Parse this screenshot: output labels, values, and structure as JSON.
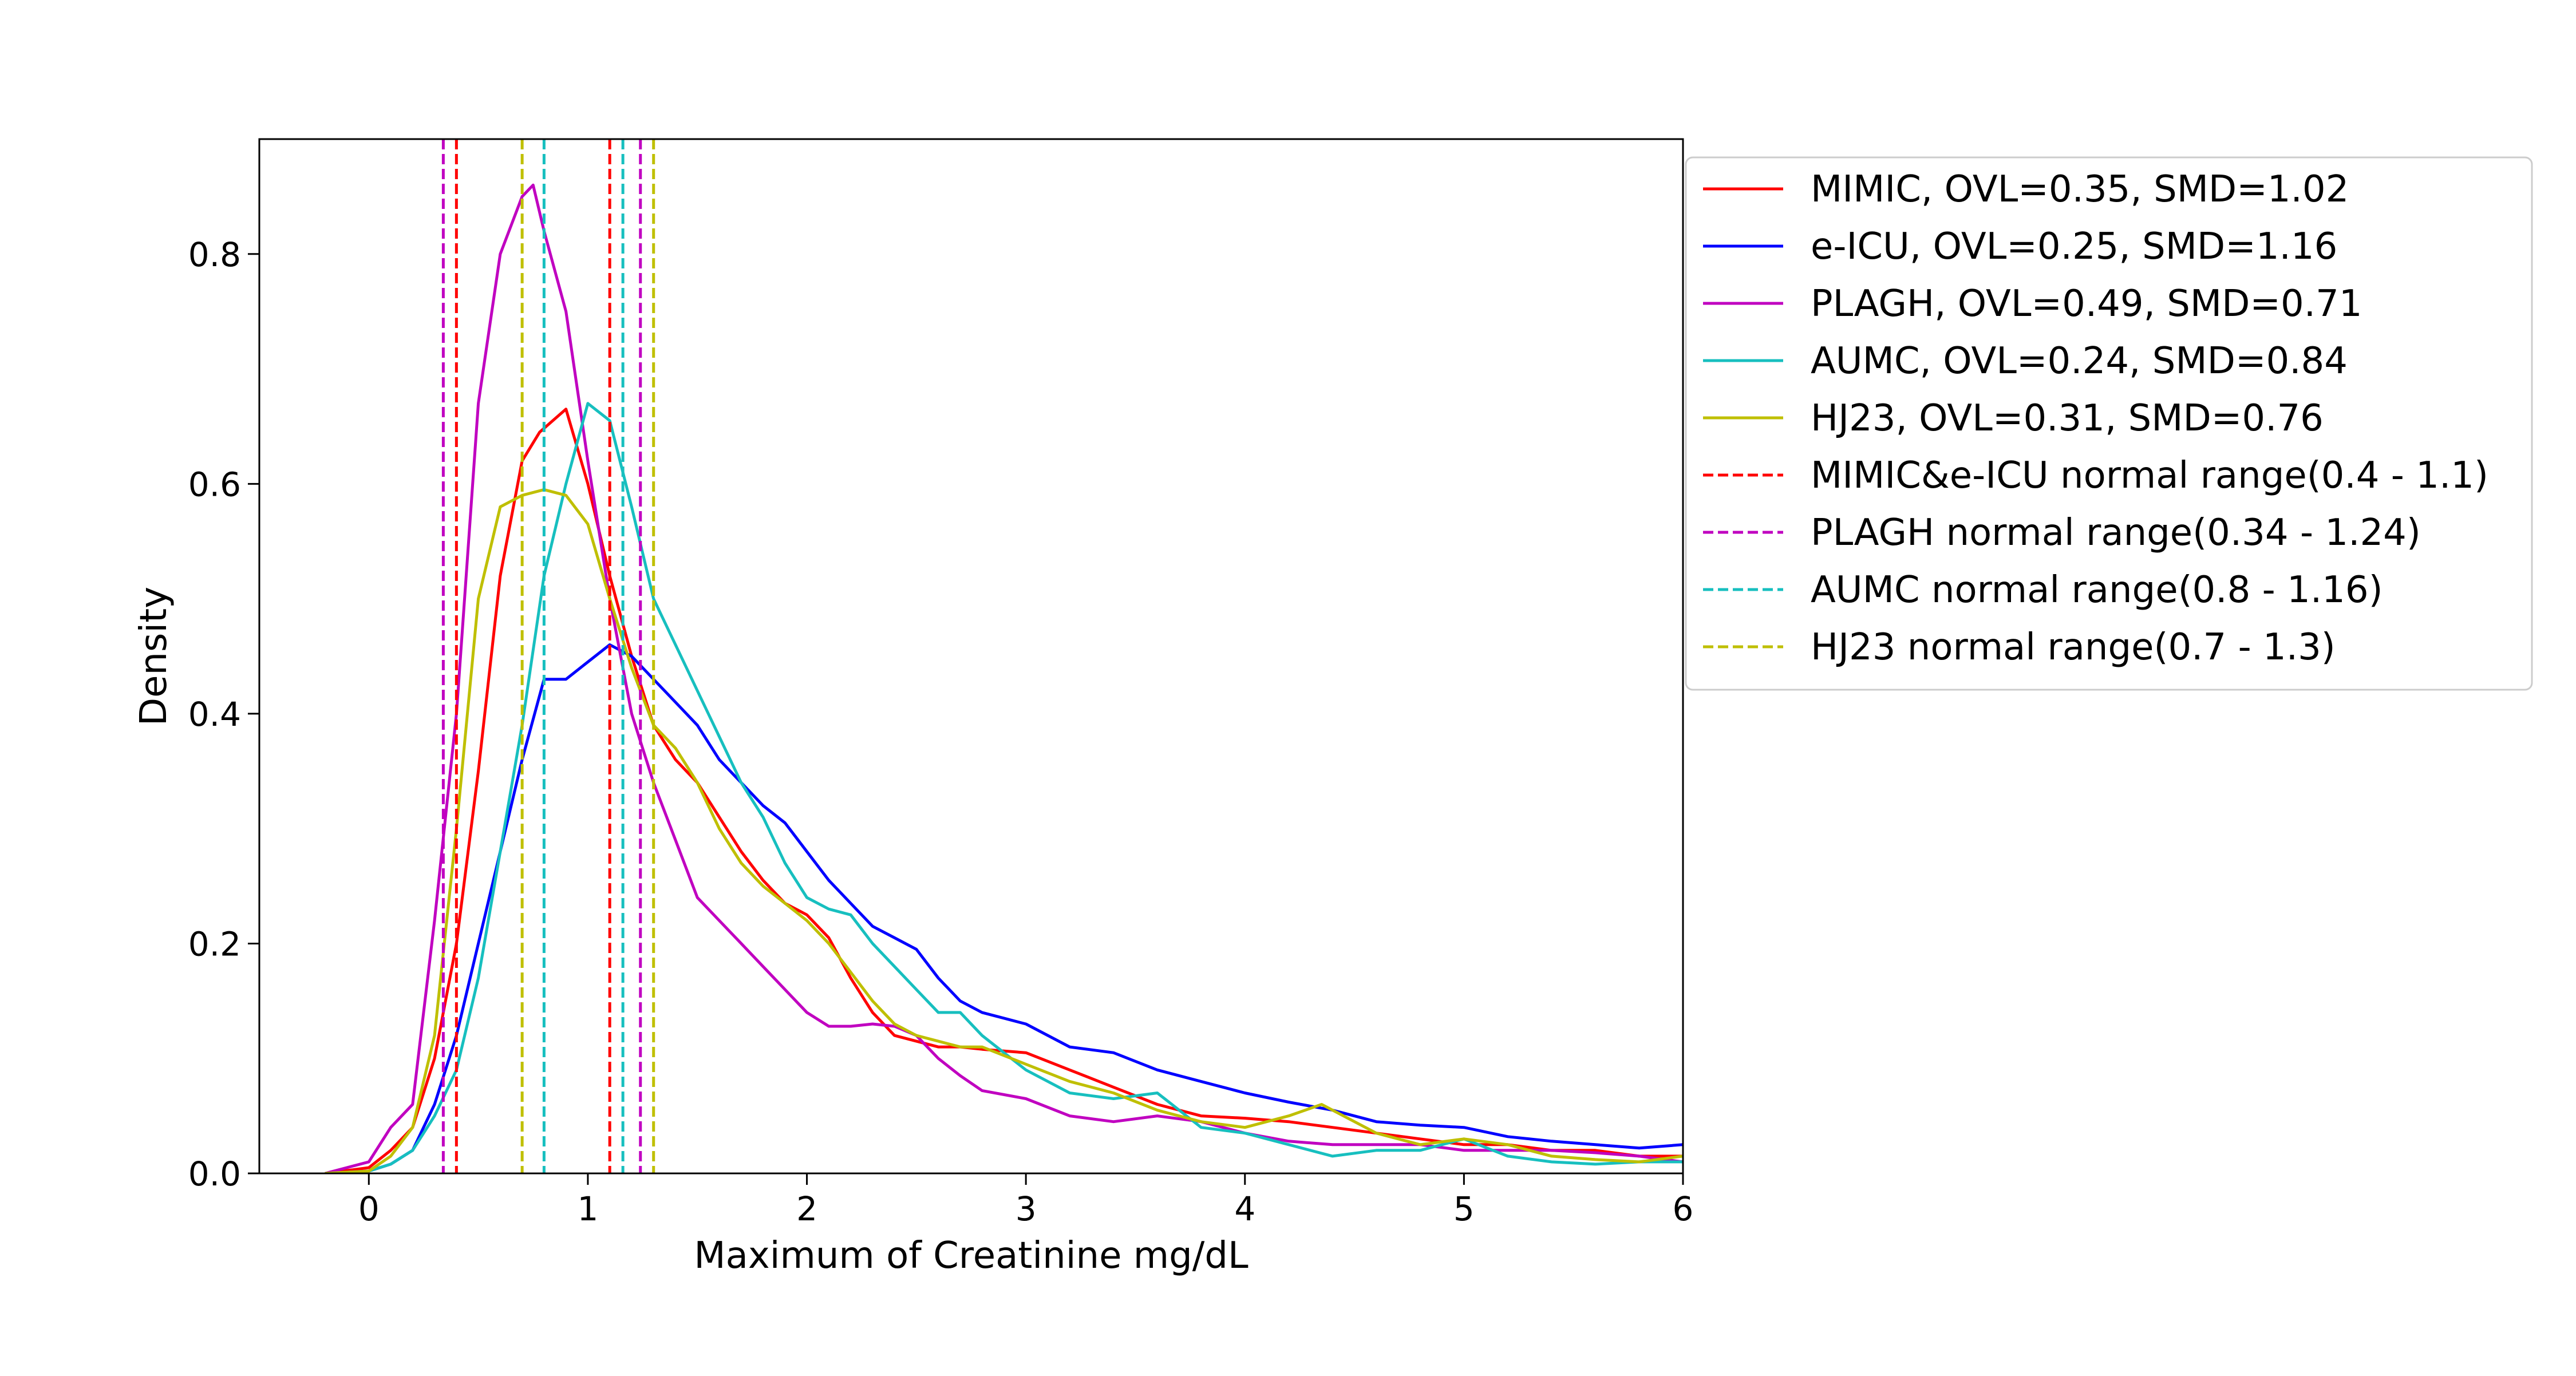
{
  "chart_data": {
    "type": "line",
    "title": "",
    "xlabel": "Maximum of Creatinine mg/dL",
    "ylabel": "Density",
    "xlim": [
      -0.5,
      6
    ],
    "ylim": [
      0,
      0.9
    ],
    "xticks": [
      0,
      1,
      2,
      3,
      4,
      5,
      6
    ],
    "yticks": [
      0.0,
      0.2,
      0.4,
      0.6,
      0.8
    ],
    "xtick_labels": [
      "0",
      "1",
      "2",
      "3",
      "4",
      "5",
      "6"
    ],
    "ytick_labels": [
      "0.0",
      "0.2",
      "0.4",
      "0.6",
      "0.8"
    ],
    "grid": false,
    "legend_position": "outside-right-top",
    "series": [
      {
        "name": "MIMIC, OVL=0.35, SMD=1.02",
        "color": "#ff0000",
        "style": "solid",
        "x": [
          -0.2,
          0.0,
          0.1,
          0.2,
          0.3,
          0.4,
          0.5,
          0.6,
          0.7,
          0.78,
          0.9,
          1.0,
          1.1,
          1.2,
          1.3,
          1.4,
          1.5,
          1.6,
          1.7,
          1.8,
          1.9,
          2.0,
          2.1,
          2.2,
          2.3,
          2.4,
          2.5,
          2.6,
          2.7,
          2.8,
          3.0,
          3.2,
          3.4,
          3.6,
          3.8,
          4.0,
          4.2,
          4.4,
          4.6,
          4.8,
          5.0,
          5.2,
          5.4,
          5.6,
          5.8,
          6.0
        ],
        "y": [
          0.0,
          0.005,
          0.02,
          0.04,
          0.1,
          0.2,
          0.35,
          0.52,
          0.62,
          0.645,
          0.665,
          0.6,
          0.52,
          0.45,
          0.39,
          0.36,
          0.34,
          0.31,
          0.28,
          0.255,
          0.235,
          0.225,
          0.205,
          0.17,
          0.14,
          0.12,
          0.115,
          0.11,
          0.11,
          0.108,
          0.105,
          0.09,
          0.075,
          0.06,
          0.05,
          0.048,
          0.045,
          0.04,
          0.035,
          0.03,
          0.025,
          0.025,
          0.02,
          0.02,
          0.015,
          0.015
        ]
      },
      {
        "name": "e-ICU, OVL=0.25, SMD=1.16",
        "color": "#0000ff",
        "style": "solid",
        "x": [
          -0.2,
          0.0,
          0.1,
          0.2,
          0.3,
          0.4,
          0.5,
          0.6,
          0.7,
          0.8,
          0.9,
          1.0,
          1.1,
          1.2,
          1.3,
          1.4,
          1.5,
          1.6,
          1.7,
          1.8,
          1.9,
          2.0,
          2.1,
          2.2,
          2.3,
          2.4,
          2.5,
          2.6,
          2.7,
          2.8,
          3.0,
          3.2,
          3.4,
          3.6,
          3.8,
          4.0,
          4.2,
          4.4,
          4.6,
          4.8,
          5.0,
          5.2,
          5.4,
          5.6,
          5.8,
          6.0
        ],
        "y": [
          0.0,
          0.002,
          0.008,
          0.02,
          0.06,
          0.12,
          0.2,
          0.28,
          0.36,
          0.43,
          0.43,
          0.445,
          0.46,
          0.45,
          0.43,
          0.41,
          0.39,
          0.36,
          0.34,
          0.32,
          0.305,
          0.28,
          0.255,
          0.235,
          0.215,
          0.205,
          0.195,
          0.17,
          0.15,
          0.14,
          0.13,
          0.11,
          0.105,
          0.09,
          0.08,
          0.07,
          0.062,
          0.055,
          0.045,
          0.042,
          0.04,
          0.032,
          0.028,
          0.025,
          0.022,
          0.025
        ]
      },
      {
        "name": "PLAGH, OVL=0.49, SMD=0.71",
        "color": "#c000c0",
        "style": "solid",
        "x": [
          -0.2,
          0.0,
          0.1,
          0.2,
          0.3,
          0.4,
          0.5,
          0.6,
          0.7,
          0.75,
          0.8,
          0.9,
          1.0,
          1.1,
          1.2,
          1.3,
          1.4,
          1.5,
          1.6,
          1.7,
          1.8,
          1.9,
          2.0,
          2.1,
          2.2,
          2.3,
          2.4,
          2.5,
          2.6,
          2.7,
          2.8,
          3.0,
          3.2,
          3.4,
          3.6,
          3.8,
          4.0,
          4.2,
          4.4,
          4.6,
          4.8,
          5.0,
          5.2,
          5.4,
          5.6,
          5.8,
          6.0
        ],
        "y": [
          0.0,
          0.01,
          0.04,
          0.06,
          0.22,
          0.4,
          0.67,
          0.8,
          0.85,
          0.86,
          0.82,
          0.75,
          0.62,
          0.5,
          0.4,
          0.34,
          0.29,
          0.24,
          0.22,
          0.2,
          0.18,
          0.16,
          0.14,
          0.128,
          0.128,
          0.13,
          0.128,
          0.12,
          0.1,
          0.085,
          0.072,
          0.065,
          0.05,
          0.045,
          0.05,
          0.045,
          0.035,
          0.028,
          0.025,
          0.025,
          0.025,
          0.02,
          0.02,
          0.02,
          0.018,
          0.015,
          0.01
        ]
      },
      {
        "name": "AUMC, OVL=0.24, SMD=0.84",
        "color": "#17bfbf",
        "style": "solid",
        "x": [
          -0.2,
          0.0,
          0.1,
          0.2,
          0.3,
          0.4,
          0.5,
          0.6,
          0.7,
          0.8,
          0.9,
          1.0,
          1.1,
          1.2,
          1.3,
          1.4,
          1.5,
          1.6,
          1.7,
          1.8,
          1.9,
          2.0,
          2.1,
          2.2,
          2.3,
          2.4,
          2.5,
          2.6,
          2.7,
          2.8,
          3.0,
          3.2,
          3.4,
          3.6,
          3.8,
          4.0,
          4.2,
          4.4,
          4.6,
          4.8,
          5.0,
          5.2,
          5.4,
          5.6,
          5.8,
          6.0
        ],
        "y": [
          0.0,
          0.002,
          0.008,
          0.02,
          0.05,
          0.09,
          0.17,
          0.28,
          0.39,
          0.52,
          0.6,
          0.67,
          0.655,
          0.58,
          0.5,
          0.46,
          0.42,
          0.38,
          0.34,
          0.31,
          0.27,
          0.24,
          0.23,
          0.225,
          0.2,
          0.18,
          0.16,
          0.14,
          0.14,
          0.12,
          0.09,
          0.07,
          0.065,
          0.07,
          0.04,
          0.035,
          0.025,
          0.015,
          0.02,
          0.02,
          0.03,
          0.015,
          0.01,
          0.008,
          0.01,
          0.01
        ]
      },
      {
        "name": "HJ23, OVL=0.31, SMD=0.76",
        "color": "#bfbf00",
        "style": "solid",
        "x": [
          -0.2,
          0.0,
          0.1,
          0.2,
          0.3,
          0.4,
          0.5,
          0.6,
          0.7,
          0.8,
          0.9,
          1.0,
          1.1,
          1.2,
          1.3,
          1.4,
          1.5,
          1.6,
          1.7,
          1.8,
          1.9,
          2.0,
          2.1,
          2.2,
          2.3,
          2.4,
          2.5,
          2.6,
          2.7,
          2.8,
          3.0,
          3.2,
          3.4,
          3.6,
          3.8,
          4.0,
          4.2,
          4.35,
          4.6,
          4.8,
          5.0,
          5.2,
          5.4,
          5.6,
          5.8,
          6.0
        ],
        "y": [
          0.0,
          0.002,
          0.015,
          0.04,
          0.12,
          0.3,
          0.5,
          0.58,
          0.59,
          0.595,
          0.59,
          0.565,
          0.5,
          0.44,
          0.39,
          0.37,
          0.34,
          0.3,
          0.27,
          0.25,
          0.235,
          0.22,
          0.2,
          0.175,
          0.15,
          0.13,
          0.12,
          0.115,
          0.11,
          0.11,
          0.095,
          0.08,
          0.07,
          0.055,
          0.045,
          0.04,
          0.05,
          0.06,
          0.035,
          0.025,
          0.03,
          0.025,
          0.015,
          0.012,
          0.01,
          0.015
        ]
      }
    ],
    "vlines": [
      {
        "name": "MIMIC&e-ICU normal range(0.4 - 1.1)",
        "color": "#ff0000",
        "style": "dashed",
        "x": [
          0.4,
          1.1
        ]
      },
      {
        "name": "PLAGH normal range(0.34 - 1.24)",
        "color": "#c000c0",
        "style": "dashed",
        "x": [
          0.34,
          1.24
        ]
      },
      {
        "name": "AUMC normal range(0.8 - 1.16)",
        "color": "#17bfbf",
        "style": "dashed",
        "x": [
          0.8,
          1.16
        ]
      },
      {
        "name": "HJ23 normal range(0.7 - 1.3)",
        "color": "#bfbf00",
        "style": "dashed",
        "x": [
          0.7,
          1.3
        ]
      }
    ]
  }
}
